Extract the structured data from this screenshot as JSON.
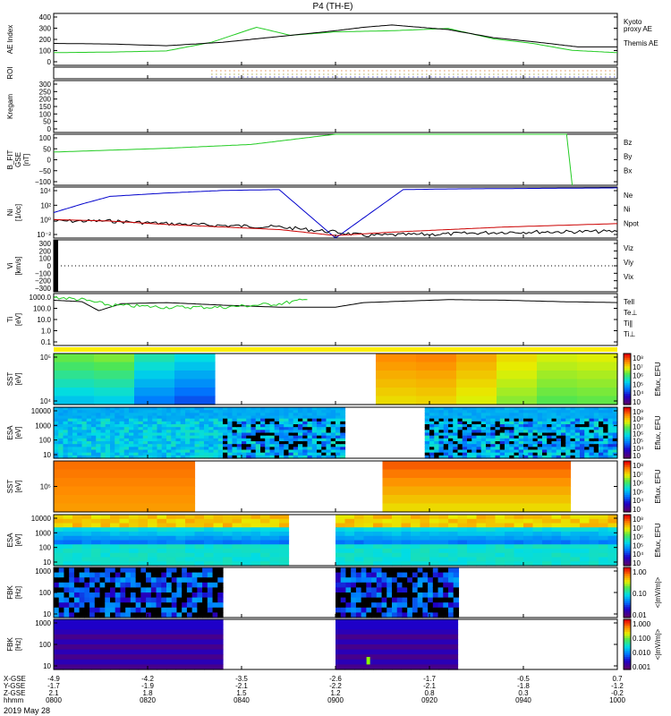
{
  "title": "P4 (TH-E)",
  "date_label": "2019 May 28",
  "colors": {
    "green": "#22cc22",
    "black": "#000000",
    "red": "#cc0000",
    "blue": "#0000cc"
  },
  "chart_data": [
    {
      "type": "line",
      "ylabel": "AE Index",
      "ylim": [
        -50,
        400
      ],
      "yticks": [
        "400",
        "300",
        "200",
        "100",
        "0"
      ],
      "legend": [
        {
          "label": "Kyoto\nproxy AE",
          "color": "green"
        },
        {
          "label": "Themis AE",
          "color": "black"
        }
      ],
      "series": [
        {
          "name": "Kyoto proxy AE",
          "color": "green",
          "x": [
            0,
            0.1,
            0.2,
            0.28,
            0.36,
            0.42,
            0.5,
            0.6,
            0.7,
            0.78,
            0.85,
            0.92,
            1
          ],
          "y": [
            60,
            65,
            75,
            150,
            280,
            210,
            240,
            250,
            270,
            180,
            140,
            80,
            60
          ]
        },
        {
          "name": "Themis AE",
          "color": "black",
          "x": [
            0,
            0.1,
            0.2,
            0.3,
            0.4,
            0.5,
            0.55,
            0.6,
            0.7,
            0.78,
            0.86,
            0.93,
            1
          ],
          "y": [
            140,
            135,
            120,
            150,
            200,
            250,
            280,
            300,
            260,
            190,
            150,
            110,
            110
          ]
        }
      ]
    },
    {
      "type": "line",
      "ylabel": "ROI",
      "yticks": [],
      "legend": []
    },
    {
      "type": "line",
      "ylabel": "Kregam",
      "ylim": [
        0,
        300
      ],
      "yticks": [
        "300",
        "250",
        "200",
        "150",
        "100",
        "50",
        "0"
      ],
      "legend": []
    },
    {
      "type": "line",
      "ylabel": "B_FIT\nGSE\n[nT]",
      "ylim": [
        -100,
        100
      ],
      "yticks": [
        "100",
        "50",
        "0",
        "−50",
        "−100"
      ],
      "legend": [
        {
          "label": "Bz",
          "color": "red"
        },
        {
          "label": "By",
          "color": "green"
        },
        {
          "label": "Bx",
          "color": "blue"
        }
      ],
      "series": [
        {
          "name": "By",
          "color": "green",
          "x": [
            0,
            0.2,
            0.35,
            0.5,
            0.9,
            0.91,
            0.92
          ],
          "y": [
            30,
            45,
            60,
            100,
            100,
            100,
            -100
          ]
        }
      ]
    },
    {
      "type": "line",
      "ylabel": "Ni\n[1/cc]",
      "yscale": "log",
      "ylim": [
        0.01,
        10000
      ],
      "yticks": [
        "10⁴",
        "10²",
        "10⁰",
        "10⁻²"
      ],
      "legend": [
        {
          "label": "Ne",
          "color": "red"
        },
        {
          "label": "Ni",
          "color": "black"
        },
        {
          "label": "Npot",
          "color": "blue"
        }
      ],
      "series": [
        {
          "name": "Npot",
          "color": "blue",
          "x": [
            0,
            0.05,
            0.1,
            0.2,
            0.3,
            0.4,
            0.5,
            0.62,
            0.7,
            1
          ],
          "y": [
            10,
            100,
            800,
            2000,
            4000,
            5000,
            0.01,
            5000,
            6000,
            8000
          ]
        },
        {
          "name": "Ni",
          "color": "black",
          "x": [
            0,
            0.1,
            0.2,
            0.3,
            0.4,
            0.5,
            0.55,
            0.7,
            0.8,
            1
          ],
          "y": [
            1,
            1,
            0.5,
            0.3,
            0.2,
            0.05,
            0.02,
            0.03,
            0.05,
            0.06
          ]
        },
        {
          "name": "Ne",
          "color": "red",
          "x": [
            0,
            0.1,
            0.2,
            0.3,
            0.4,
            0.5,
            0.6,
            0.8,
            1
          ],
          "y": [
            1.5,
            1,
            0.4,
            0.2,
            0.1,
            0.02,
            0.05,
            0.2,
            0.5
          ]
        }
      ]
    },
    {
      "type": "line",
      "ylabel": "Vi\n[km/s]",
      "ylim": [
        -350,
        350
      ],
      "yticks": [
        "300",
        "200",
        "100",
        "0",
        "−100",
        "−200",
        "−300"
      ],
      "legend": [
        {
          "label": "Viz",
          "color": "red"
        },
        {
          "label": "Viy",
          "color": "green"
        },
        {
          "label": "Vix",
          "color": "blue"
        }
      ],
      "series": []
    },
    {
      "type": "line",
      "ylabel": "Ti\n[eV]",
      "yscale": "log",
      "ylim": [
        0.1,
        3000
      ],
      "yticks": [
        "1000.0",
        "100.0",
        "10.0",
        "1.0",
        "0.1"
      ],
      "legend": [
        {
          "label": "Tell",
          "color": "black"
        },
        {
          "label": "Te⊥",
          "color": "red"
        },
        {
          "label": "Ti∥",
          "color": "green"
        },
        {
          "label": "Ti⊥",
          "color": "blue"
        }
      ],
      "series": [
        {
          "name": "Tell",
          "color": "black",
          "x": [
            0,
            0.05,
            0.08,
            0.12,
            0.2,
            0.3,
            0.4,
            0.5,
            0.55,
            0.7,
            0.8,
            0.9,
            1
          ],
          "y": [
            800,
            600,
            100,
            400,
            500,
            300,
            200,
            200,
            500,
            900,
            800,
            600,
            500
          ]
        },
        {
          "name": "Ti∥",
          "color": "green",
          "x": [
            0,
            0.05,
            0.1,
            0.2,
            0.3,
            0.4,
            0.45
          ],
          "y": [
            1500,
            900,
            300,
            200,
            200,
            400,
            900
          ]
        }
      ]
    },
    {
      "type": "heatmap",
      "ylabel": "SST\n[eV]",
      "yticks": [
        "10⁵",
        "10⁴"
      ],
      "cbar": [
        "10⁸",
        "10⁷",
        "10⁶",
        "10⁵",
        "10⁴",
        "10⁳"
      ],
      "cbar_label": "Eflux, EFU"
    },
    {
      "type": "heatmap",
      "ylabel": "ESA\n[eV]",
      "yticks": [
        "10000",
        "1000",
        "100",
        "10"
      ],
      "cbar": [
        "10⁹",
        "10⁸",
        "10⁷",
        "10⁶",
        "10⁵",
        "10⁴",
        "10⁳"
      ],
      "cbar_label": "Eflux, EFU"
    },
    {
      "type": "heatmap",
      "ylabel": "SST\n[eV]",
      "yticks": [
        "10⁵"
      ],
      "cbar": [
        "10⁸",
        "10⁷",
        "10⁶",
        "10⁵",
        "10⁴",
        "10⁳"
      ],
      "cbar_label": "Eflux, EFU"
    },
    {
      "type": "heatmap",
      "ylabel": "ESA\n[eV]",
      "yticks": [
        "10000",
        "1000",
        "100",
        "10"
      ],
      "cbar": [
        "10⁸",
        "10⁷",
        "10⁶",
        "10⁵",
        "10⁴",
        "10⁳"
      ],
      "cbar_label": "Eflux, EFU"
    },
    {
      "type": "heatmap",
      "ylabel": "FBK\n[Hz]",
      "yticks": [
        "1000",
        "100",
        "10"
      ],
      "cbar": [
        "1.00",
        "0.10",
        "0.01"
      ],
      "cbar_label": "<|mV/m|>"
    },
    {
      "type": "heatmap",
      "ylabel": "FBK\n[Hz]",
      "yticks": [
        "1000",
        "100",
        "10"
      ],
      "cbar": [
        "1.000",
        "0.100",
        "0.010",
        "0.001"
      ],
      "cbar_label": "<|mV/m|>"
    }
  ],
  "x_axis": {
    "row_labels": [
      "X-GSE",
      "Y-GSE",
      "Z-GSE",
      "hhmm"
    ],
    "ticks": [
      {
        "x": 0,
        "vals": [
          "-4.9",
          "-1.7",
          "2.1",
          "0800"
        ]
      },
      {
        "x": 0.1667,
        "vals": [
          "-4.2",
          "-1.9",
          "1.8",
          "0820"
        ]
      },
      {
        "x": 0.3333,
        "vals": [
          "-3.5",
          "-2.1",
          "1.5",
          "0840"
        ]
      },
      {
        "x": 0.5,
        "vals": [
          "-2.6",
          "-2.2",
          "1.2",
          "0900"
        ]
      },
      {
        "x": 0.6667,
        "vals": [
          "-1.7",
          "-2.1",
          "0.8",
          "0920"
        ]
      },
      {
        "x": 0.8333,
        "vals": [
          "-0.5",
          "-1.8",
          "0.3",
          "0940"
        ]
      },
      {
        "x": 1,
        "vals": [
          "0.7",
          "-1.2",
          "-0.2",
          "1000"
        ]
      }
    ]
  }
}
